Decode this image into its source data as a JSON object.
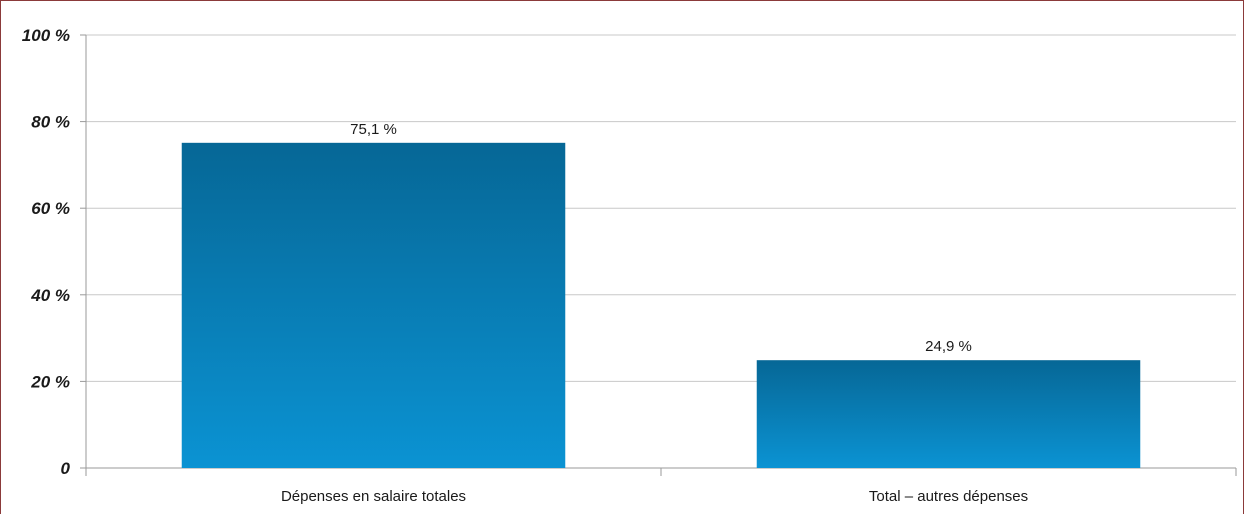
{
  "chart_data": {
    "type": "bar",
    "categories": [
      "Dépenses en salaire totales",
      "Total – autres dépenses"
    ],
    "values": [
      75.1,
      24.9
    ],
    "value_labels": [
      "75,1 %",
      "24,9 %"
    ],
    "title": "",
    "xlabel": "",
    "ylabel": "",
    "ylim": [
      0,
      100
    ],
    "yticks": [
      0,
      20,
      40,
      60,
      80,
      100
    ],
    "ytick_labels": [
      "0",
      "20 %",
      "40 %",
      "60 %",
      "80 %",
      "100 %"
    ],
    "grid": true,
    "colors": {
      "bar_top": "#066796",
      "bar_bottom": "#0b93d3",
      "grid": "#c8c8c8",
      "border": "#8b3a3a"
    }
  }
}
